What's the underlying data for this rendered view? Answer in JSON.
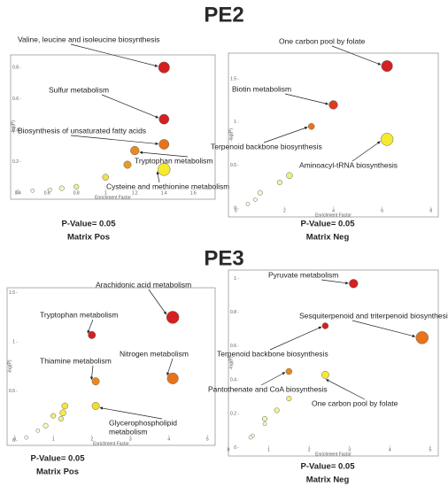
{
  "titles": [
    "PE2",
    "PE3"
  ],
  "chart_data": [
    {
      "type": "scatter",
      "xlabel": "Enrichment Factor",
      "ylabel": "-log(P)",
      "x": [
        1.4,
        1.4,
        1.4,
        1.2,
        1.4,
        1.15,
        1.0,
        0.8,
        0.7,
        0.62,
        0.5
      ],
      "y": [
        0.8,
        0.47,
        0.31,
        0.27,
        0.15,
        0.18,
        0.1,
        0.04,
        0.03,
        0.02,
        0.015
      ],
      "sizes": [
        9,
        8,
        8,
        7,
        10,
        6,
        5,
        4,
        4,
        3,
        3
      ],
      "colors": [
        "#d42020",
        "#d42020",
        "#e8731a",
        "#e8891c",
        "#f5ea30",
        "#eb9a22",
        "#f2e04a",
        "#eef08a",
        "#f4f6c0",
        "#f8f8d8",
        "#fafae8"
      ],
      "xlim": [
        0.35,
        1.75
      ],
      "ylim": [
        -0.04,
        0.88
      ],
      "xticks": [
        0.4,
        0.6,
        0.8,
        1,
        1.2,
        1.4,
        1.6
      ],
      "yticks": [
        0,
        0.2,
        0.4,
        0.6,
        0.8
      ],
      "annotations": [
        "Valine, leucine and isoleucine biosynthesis",
        "Sulfur metabolism",
        "Biosynthesis of unsaturated fatty acids",
        "Tryptophan metabolism",
        "Cysteine and methionine metabolism"
      ],
      "caption": [
        "P-Value= 0.05",
        "Matrix Pos"
      ]
    },
    {
      "type": "scatter",
      "xlabel": "Enrichment Factor",
      "ylabel": "-log(P)",
      "x": [
        6.2,
        4,
        3.1,
        6.2,
        2.2,
        1.8,
        1,
        0.8,
        0.5
      ],
      "y": [
        1.65,
        1.2,
        0.95,
        0.8,
        0.38,
        0.3,
        0.18,
        0.1,
        0.05
      ],
      "sizes": [
        9,
        7,
        5,
        10,
        5,
        4,
        4,
        3,
        3
      ],
      "colors": [
        "#d42020",
        "#dd3a1e",
        "#e8731a",
        "#f5ea30",
        "#eef07a",
        "#f2f4a0",
        "#f6f6c8",
        "#fafae0",
        "#fafae8"
      ],
      "xlim": [
        -0.3,
        8.3
      ],
      "ylim": [
        -0.1,
        1.8
      ],
      "xticks": [
        0,
        2,
        4,
        6,
        8
      ],
      "yticks": [
        0,
        0.5,
        1,
        1.5
      ],
      "annotations": [
        "One carbon pool by folate",
        "Biotin metabolism",
        "Terpenoid backbone biosynthesis",
        "Aminoacyl-tRNA biosynthesis"
      ],
      "caption": [
        "P-Value= 0.05",
        "Matrix Neg"
      ]
    },
    {
      "type": "scatter",
      "xlabel": "Enrichment Factor",
      "ylabel": "-log(P)",
      "x": [
        4.1,
        2,
        4.1,
        2.1,
        2.1,
        1.3,
        1.25,
        1.0,
        1.2,
        0.8,
        0.6,
        0.3
      ],
      "y": [
        1.25,
        1.07,
        0.63,
        0.6,
        0.35,
        0.35,
        0.28,
        0.25,
        0.22,
        0.15,
        0.1,
        0.03
      ],
      "sizes": [
        10,
        6,
        9,
        6,
        6,
        5,
        5,
        4,
        4,
        4,
        3,
        3
      ],
      "colors": [
        "#d42020",
        "#d42020",
        "#e8731a",
        "#e8891c",
        "#f2dc30",
        "#f2e640",
        "#f4ea50",
        "#f2ec70",
        "#f4f090",
        "#f6f6c0",
        "#fafae0",
        "#fafae8"
      ],
      "xlim": [
        -0.2,
        5.2
      ],
      "ylim": [
        -0.05,
        1.55
      ],
      "xticks": [
        0,
        1,
        2,
        3,
        4,
        5
      ],
      "yticks": [
        0,
        0.5,
        1,
        1.5
      ],
      "annotations": [
        "Arachidonic acid metabolism",
        "Tryptophan metabolism",
        "Nitrogen metabolism",
        "Thiamine metabolism",
        [
          "Glycerophospholipid",
          "metabolism"
        ]
      ],
      "caption": [
        "P-Value= 0.05",
        "Matrix Pos"
      ]
    },
    {
      "type": "scatter",
      "xlabel": "Enrichment Factor",
      "ylabel": "-log(P)",
      "x": [
        3.1,
        4.8,
        2.4,
        1.5,
        2.4,
        1.5,
        1.2,
        0.9,
        0.9,
        0.6,
        0.55
      ],
      "y": [
        0.97,
        0.65,
        0.72,
        0.45,
        0.43,
        0.29,
        0.22,
        0.17,
        0.14,
        0.07,
        0.06
      ],
      "sizes": [
        7,
        10,
        5,
        5,
        6,
        4,
        4,
        4,
        3,
        3,
        3
      ],
      "colors": [
        "#d42020",
        "#e8731a",
        "#d42020",
        "#e8891c",
        "#f5ea30",
        "#f2f070",
        "#f4f290",
        "#f6f6b0",
        "#f8f8d0",
        "#fafae0",
        "#fafae8"
      ],
      "xlim": [
        0,
        5.2
      ],
      "ylim": [
        -0.05,
        1.05
      ],
      "xticks": [
        0,
        1,
        2,
        3,
        4,
        5
      ],
      "yticks": [
        0,
        0.2,
        0.4,
        0.6,
        0.8,
        1
      ],
      "annotations": [
        "Pyruvate metabolism",
        "Sesquiterpenoid and triterpenoid biosynthesis",
        "Terpenoid backbone biosynthesis",
        "Pantothenate and CoA biosynthesis",
        "One carbon pool by folate"
      ],
      "caption": [
        "P-Value= 0.05",
        "Matrix Neg"
      ]
    }
  ]
}
